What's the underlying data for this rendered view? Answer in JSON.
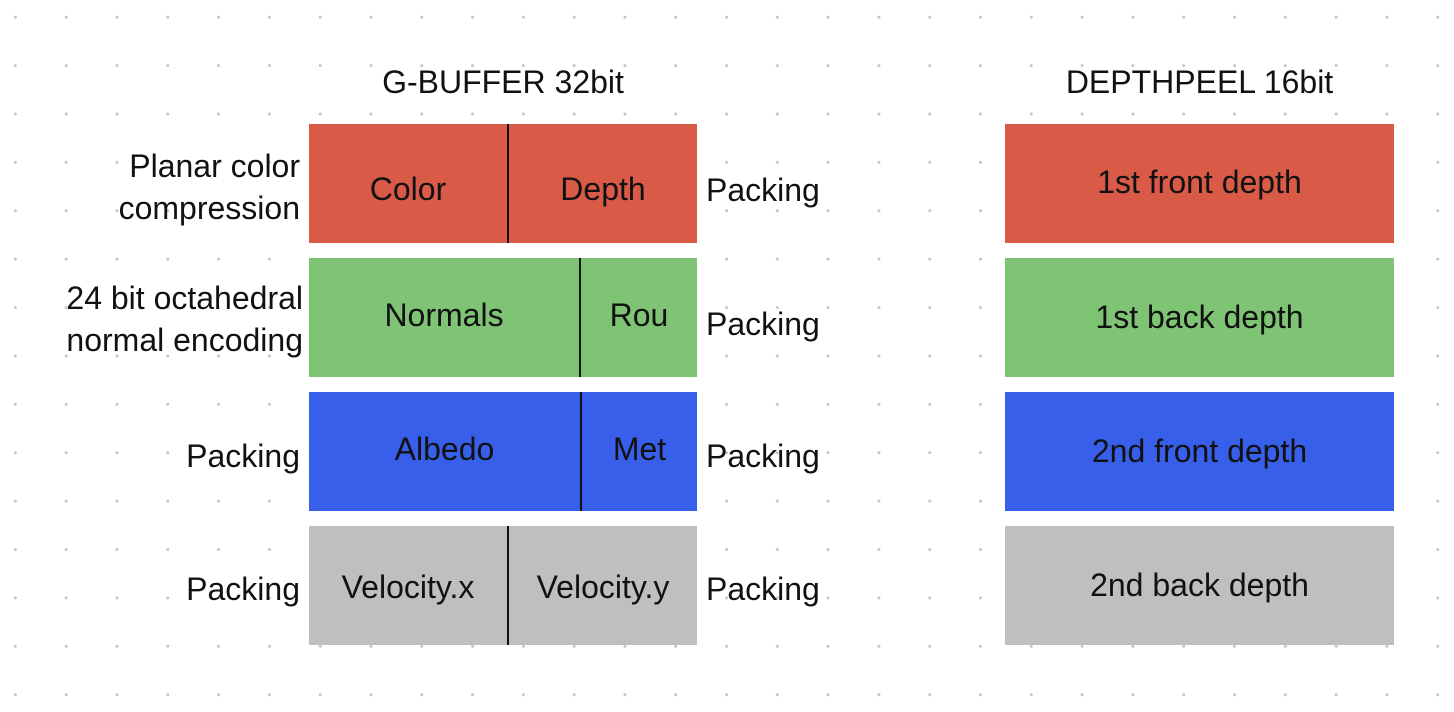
{
  "colors": {
    "red": "#d95a47",
    "green": "#7ec474",
    "blue": "#375fea",
    "gray": "#bfbfbf"
  },
  "gbuffer": {
    "title": "G-BUFFER 32bit",
    "rows": [
      {
        "left_label": "Planar color\ncompression",
        "cells": [
          "Color",
          "Depth"
        ],
        "right_label": "Packing",
        "color": "red"
      },
      {
        "left_label": "24 bit octahedral\nnormal encoding",
        "cells": [
          "Normals",
          "Rou"
        ],
        "right_label": "Packing",
        "color": "green"
      },
      {
        "left_label": "Packing",
        "cells": [
          "Albedo",
          "Met"
        ],
        "right_label": "Packing",
        "color": "blue"
      },
      {
        "left_label": "Packing",
        "cells": [
          "Velocity.x",
          "Velocity.y"
        ],
        "right_label": "Packing",
        "color": "gray"
      }
    ]
  },
  "depthpeel": {
    "title": "DEPTHPEEL 16bit",
    "rows": [
      {
        "label": "1st front depth",
        "color": "red"
      },
      {
        "label": "1st back depth",
        "color": "green"
      },
      {
        "label": "2nd front depth",
        "color": "blue"
      },
      {
        "label": "2nd back depth",
        "color": "gray"
      }
    ]
  }
}
